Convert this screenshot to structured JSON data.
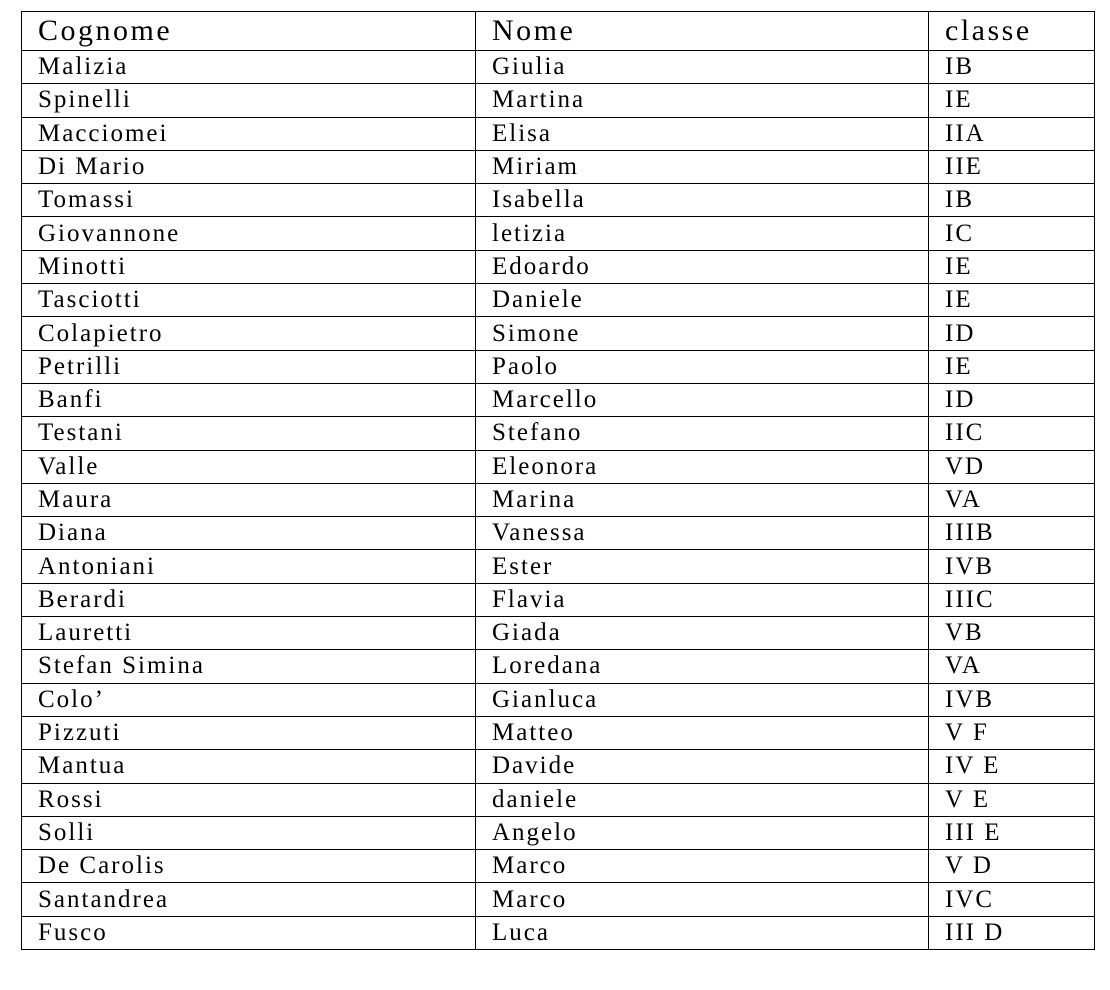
{
  "table": {
    "headers": [
      "Cognome",
      "Nome",
      "classe"
    ],
    "rows": [
      [
        "Malizia",
        "Giulia",
        "IB"
      ],
      [
        "Spinelli",
        "Martina",
        "IE"
      ],
      [
        "Macciomei",
        "Elisa",
        "IIA"
      ],
      [
        "Di Mario",
        "Miriam",
        "IIE"
      ],
      [
        "Tomassi",
        "Isabella",
        "IB"
      ],
      [
        "Giovannone",
        "letizia",
        "IC"
      ],
      [
        "Minotti",
        "Edoardo",
        "IE"
      ],
      [
        "Tasciotti",
        "Daniele",
        "IE"
      ],
      [
        "Colapietro",
        "Simone",
        "ID"
      ],
      [
        "Petrilli",
        "Paolo",
        "IE"
      ],
      [
        "Banfi",
        "Marcello",
        "ID"
      ],
      [
        "Testani",
        "Stefano",
        "IIC"
      ],
      [
        "Valle",
        "Eleonora",
        "VD"
      ],
      [
        "Maura",
        "Marina",
        "VA"
      ],
      [
        "Diana",
        "Vanessa",
        "IIIB"
      ],
      [
        "Antoniani",
        "Ester",
        "IVB"
      ],
      [
        "Berardi",
        "Flavia",
        "IIIC"
      ],
      [
        "Lauretti",
        "Giada",
        "VB"
      ],
      [
        "Stefan Simina",
        "Loredana",
        "VA"
      ],
      [
        "Colo’",
        "Gianluca",
        "IVB"
      ],
      [
        "Pizzuti",
        "Matteo",
        "V F"
      ],
      [
        "Mantua",
        "Davide",
        "IV E"
      ],
      [
        "Rossi",
        "daniele",
        "V E"
      ],
      [
        "Solli",
        "Angelo",
        "III E"
      ],
      [
        "De Carolis",
        "Marco",
        "V D"
      ],
      [
        "Santandrea",
        "Marco",
        "IVC"
      ],
      [
        "Fusco",
        "Luca",
        "III D"
      ]
    ]
  }
}
